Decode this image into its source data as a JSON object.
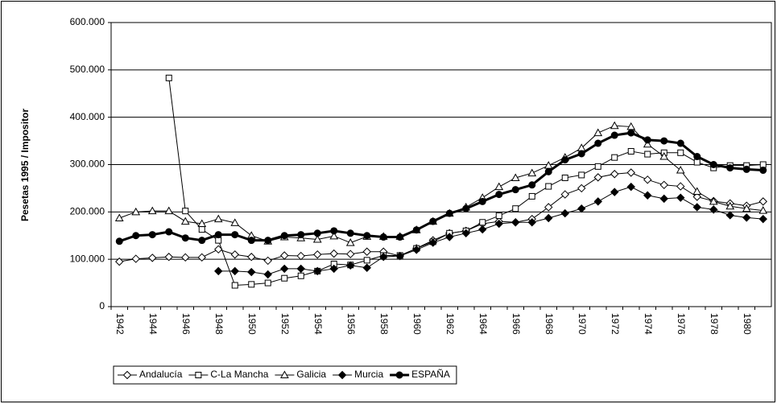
{
  "chart_data": {
    "type": "line",
    "y_label": "Pesetas 1995 / Impositor",
    "categories": [
      1942,
      null,
      1944,
      null,
      1946,
      null,
      1948,
      null,
      1950,
      null,
      1952,
      null,
      1954,
      null,
      1956,
      null,
      1958,
      null,
      1960,
      null,
      1962,
      null,
      1964,
      null,
      1966,
      null,
      1968,
      null,
      1970,
      null,
      1972,
      null,
      1974,
      null,
      1976,
      null,
      1978,
      null,
      1980,
      null
    ],
    "ylim": [
      0,
      600000
    ],
    "yticks": [
      0,
      {
        "value": 100000,
        "label": "100.000"
      },
      {
        "value": 200000,
        "label": "200.000"
      },
      {
        "value": 300000,
        "label": "300.000"
      },
      {
        "value": 400000,
        "label": "400.000"
      },
      {
        "value": 500000,
        "label": "500.000"
      },
      {
        "value": 600000,
        "label": "600.000"
      }
    ],
    "grid": true,
    "legend": "bottom-left",
    "series": [
      {
        "name": "Andalucía",
        "color": "#000000",
        "marker": "diamond",
        "marker_fill": "#ffffff",
        "line_width": 1,
        "values": [
          95000,
          101000,
          103000,
          105000,
          104000,
          104000,
          121000,
          110000,
          105000,
          97000,
          108000,
          107000,
          110000,
          112000,
          111000,
          116000,
          116000,
          107000,
          123000,
          140000,
          155000,
          160000,
          175000,
          180000,
          178000,
          185000,
          210000,
          237000,
          250000,
          273000,
          280000,
          283000,
          268000,
          257000,
          254000,
          232000,
          223000,
          218000,
          213000,
          222000
        ]
      },
      {
        "name": "C-La Mancha",
        "color": "#000000",
        "marker": "square",
        "marker_fill": "#ffffff",
        "line_width": 1,
        "values": [
          null,
          null,
          null,
          483000,
          202000,
          163000,
          140000,
          45000,
          47000,
          50000,
          60000,
          65000,
          75000,
          90000,
          88000,
          98000,
          108000,
          108000,
          123000,
          137000,
          155000,
          160000,
          178000,
          192000,
          207000,
          233000,
          254000,
          272000,
          278000,
          296000,
          315000,
          328000,
          322000,
          325000,
          325000,
          305000,
          293000,
          298000,
          298000,
          300000
        ]
      },
      {
        "name": "Galicia",
        "color": "#000000",
        "marker": "triangle",
        "marker_fill": "#ffffff",
        "line_width": 1,
        "values": [
          187000,
          200000,
          202000,
          202000,
          180000,
          175000,
          185000,
          177000,
          150000,
          138000,
          147000,
          145000,
          142000,
          149000,
          135000,
          148000,
          148000,
          148000,
          162000,
          180000,
          197000,
          210000,
          230000,
          253000,
          272000,
          282000,
          298000,
          315000,
          335000,
          367000,
          382000,
          380000,
          343000,
          317000,
          288000,
          243000,
          222000,
          212000,
          207000,
          203000
        ]
      },
      {
        "name": "Murcia",
        "color": "#000000",
        "marker": "diamond",
        "marker_fill": "#000000",
        "line_width": 1,
        "values": [
          null,
          null,
          null,
          null,
          null,
          null,
          75000,
          75000,
          73000,
          68000,
          80000,
          80000,
          75000,
          80000,
          87000,
          82000,
          105000,
          107000,
          120000,
          135000,
          147000,
          155000,
          163000,
          175000,
          178000,
          178000,
          187000,
          197000,
          207000,
          222000,
          242000,
          253000,
          235000,
          228000,
          230000,
          210000,
          205000,
          193000,
          188000,
          185000
        ]
      },
      {
        "name": "ESPAÑA",
        "color": "#000000",
        "marker": "circle",
        "marker_fill": "#000000",
        "line_width": 3,
        "values": [
          138000,
          150000,
          152000,
          158000,
          145000,
          140000,
          152000,
          152000,
          140000,
          140000,
          150000,
          152000,
          155000,
          160000,
          155000,
          150000,
          147000,
          147000,
          162000,
          180000,
          197000,
          207000,
          222000,
          237000,
          247000,
          257000,
          285000,
          310000,
          323000,
          345000,
          362000,
          367000,
          352000,
          350000,
          345000,
          317000,
          300000,
          293000,
          290000,
          288000
        ]
      }
    ]
  }
}
